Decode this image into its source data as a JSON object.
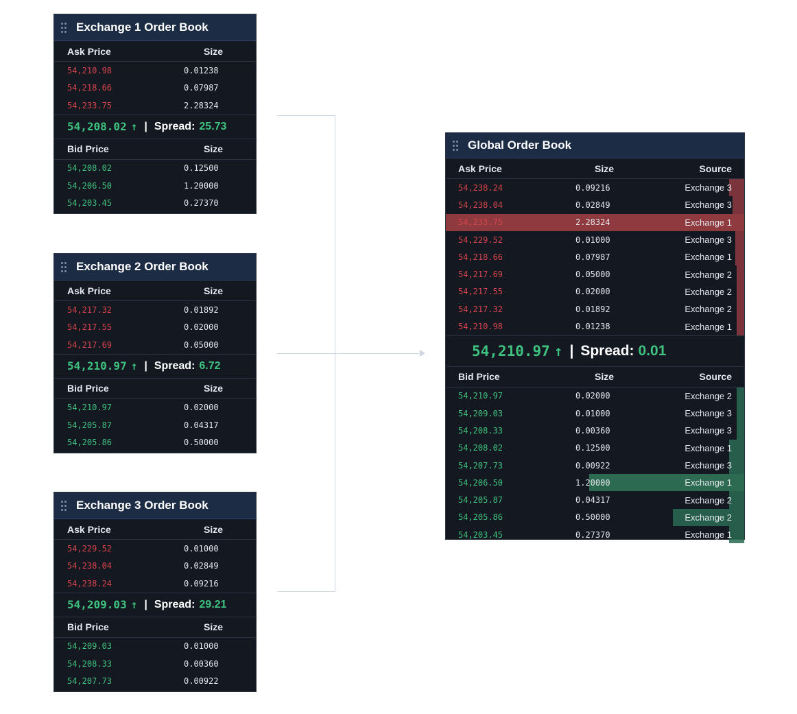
{
  "exchanges": [
    {
      "title": "Exchange 1 Order Book",
      "ask_header": "Ask Price",
      "size_header": "Size",
      "asks": [
        {
          "price": "54,210.98",
          "size": "0.01238"
        },
        {
          "price": "54,218.66",
          "size": "0.07987"
        },
        {
          "price": "54,233.75",
          "size": "2.28324"
        }
      ],
      "last_price": "54,208.02",
      "arrow": "↑",
      "spread_label": "Spread:",
      "spread": "25.73",
      "bid_header": "Bid Price",
      "bids": [
        {
          "price": "54,208.02",
          "size": "0.12500"
        },
        {
          "price": "54,206.50",
          "size": "1.20000"
        },
        {
          "price": "54,203.45",
          "size": "0.27370"
        }
      ]
    },
    {
      "title": "Exchange 2 Order Book",
      "ask_header": "Ask Price",
      "size_header": "Size",
      "asks": [
        {
          "price": "54,217.32",
          "size": "0.01892"
        },
        {
          "price": "54,217.55",
          "size": "0.02000"
        },
        {
          "price": "54,217.69",
          "size": "0.05000"
        }
      ],
      "last_price": "54,210.97",
      "arrow": "↑",
      "spread_label": "Spread:",
      "spread": "6.72",
      "bid_header": "Bid Price",
      "bids": [
        {
          "price": "54,210.97",
          "size": "0.02000"
        },
        {
          "price": "54,205.87",
          "size": "0.04317"
        },
        {
          "price": "54,205.86",
          "size": "0.50000"
        }
      ]
    },
    {
      "title": "Exchange 3 Order Book",
      "ask_header": "Ask Price",
      "size_header": "Size",
      "asks": [
        {
          "price": "54,229.52",
          "size": "0.01000"
        },
        {
          "price": "54,238.04",
          "size": "0.02849"
        },
        {
          "price": "54,238.24",
          "size": "0.09216"
        }
      ],
      "last_price": "54,209.03",
      "arrow": "↑",
      "spread_label": "Spread:",
      "spread": "29.21",
      "bid_header": "Bid Price",
      "bids": [
        {
          "price": "54,209.03",
          "size": "0.01000"
        },
        {
          "price": "54,208.33",
          "size": "0.00360"
        },
        {
          "price": "54,207.73",
          "size": "0.00922"
        }
      ]
    }
  ],
  "global": {
    "title": "Global Order Book",
    "ask_header": "Ask Price",
    "size_header": "Size",
    "source_header": "Source",
    "asks": [
      {
        "price": "54,238.24",
        "size": "0.09216",
        "source": "Exchange 3",
        "depth": 0.05,
        "highlight": false
      },
      {
        "price": "54,238.04",
        "size": "0.02849",
        "source": "Exchange 3",
        "depth": 0.04,
        "highlight": false
      },
      {
        "price": "54,233.75",
        "size": "2.28324",
        "source": "Exchange 1",
        "depth": 1.0,
        "highlight": true
      },
      {
        "price": "54,229.52",
        "size": "0.01000",
        "source": "Exchange 3",
        "depth": 0.03,
        "highlight": false
      },
      {
        "price": "54,218.66",
        "size": "0.07987",
        "source": "Exchange 1",
        "depth": 0.03,
        "highlight": false
      },
      {
        "price": "54,217.69",
        "size": "0.05000",
        "source": "Exchange 2",
        "depth": 0.02,
        "highlight": false
      },
      {
        "price": "54,217.55",
        "size": "0.02000",
        "source": "Exchange 2",
        "depth": 0.02,
        "highlight": false
      },
      {
        "price": "54,217.32",
        "size": "0.01892",
        "source": "Exchange 2",
        "depth": 0.02,
        "highlight": false
      },
      {
        "price": "54,210.98",
        "size": "0.01238",
        "source": "Exchange 1",
        "depth": 0.01,
        "highlight": false
      }
    ],
    "last_price": "54,210.97",
    "arrow": "↑",
    "spread_label": "Spread:",
    "spread": "0.01",
    "bid_header": "Bid Price",
    "bids": [
      {
        "price": "54,210.97",
        "size": "0.02000",
        "source": "Exchange 2",
        "depth": 0.01,
        "highlight": false
      },
      {
        "price": "54,209.03",
        "size": "0.01000",
        "source": "Exchange 3",
        "depth": 0.02,
        "highlight": false
      },
      {
        "price": "54,208.33",
        "size": "0.00360",
        "source": "Exchange 3",
        "depth": 0.02,
        "highlight": false
      },
      {
        "price": "54,208.02",
        "size": "0.12500",
        "source": "Exchange 1",
        "depth": 0.05,
        "highlight": false
      },
      {
        "price": "54,207.73",
        "size": "0.00922",
        "source": "Exchange 3",
        "depth": 0.05,
        "highlight": false
      },
      {
        "price": "54,206.50",
        "size": "1.20000",
        "source": "Exchange 1",
        "depth": 0.52,
        "highlight": true
      },
      {
        "price": "54,205.87",
        "size": "0.04317",
        "source": "Exchange 2",
        "depth": 0.05,
        "highlight": false
      },
      {
        "price": "54,205.86",
        "size": "0.50000",
        "source": "Exchange 2",
        "depth": 0.24,
        "highlight": false
      },
      {
        "price": "54,203.45",
        "size": "0.27370",
        "source": "Exchange 1",
        "depth": 0.05,
        "highlight": false
      }
    ]
  },
  "colors": {
    "panel_bg": "#131821",
    "header_bg": "#1d2c45",
    "ask": "#d8444d",
    "bid": "#3fc27f",
    "ask_highlight": "#8e3a3f",
    "bid_highlight": "#2c6b52",
    "connector": "#cdd6e1"
  },
  "icons": {
    "drag_handle": "grip-icon",
    "uptick": "arrow-up-icon"
  }
}
